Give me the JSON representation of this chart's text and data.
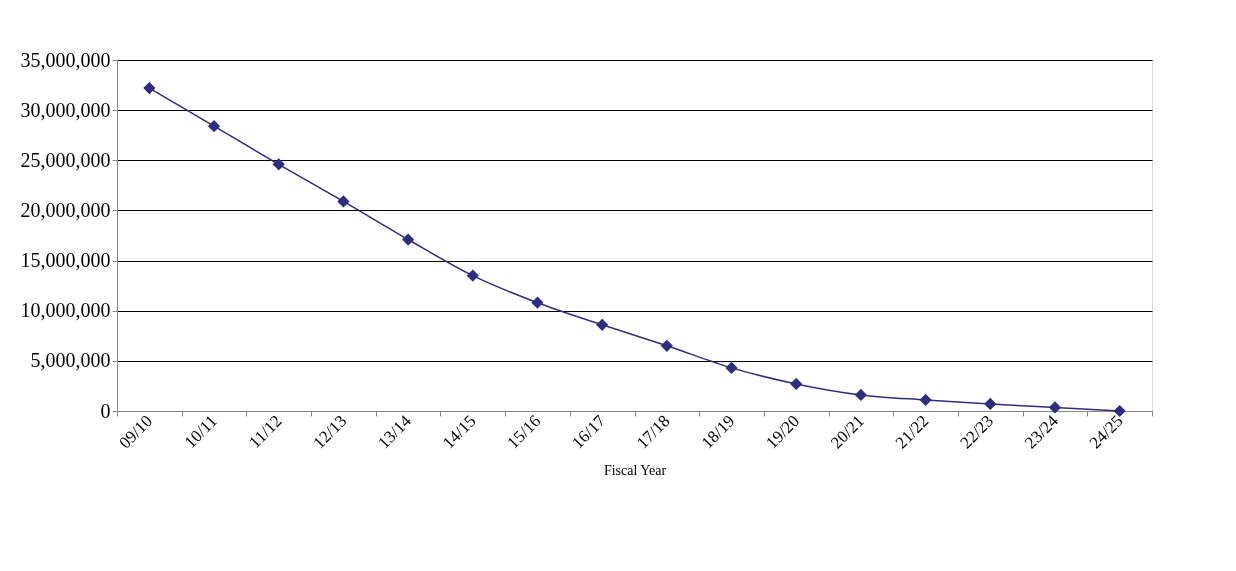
{
  "chart_data": {
    "type": "line",
    "xlabel": "Fiscal Year",
    "categories": [
      "09/10",
      "10/11",
      "11/12",
      "12/13",
      "13/14",
      "14/15",
      "15/16",
      "16/17",
      "17/18",
      "18/19",
      "19/20",
      "20/21",
      "21/22",
      "22/23",
      "23/24",
      "24/25"
    ],
    "series": [
      {
        "color": "#2e2e7e",
        "values": [
          32200000,
          28400000,
          24600000,
          20900000,
          17100000,
          13500000,
          10800000,
          8600000,
          6500000,
          4300000,
          2700000,
          1600000,
          1100000,
          700000,
          350000,
          0
        ]
      }
    ],
    "ylim": [
      0,
      35000000
    ],
    "yticks": [
      {
        "value": 0,
        "label": "0"
      },
      {
        "value": 5000000,
        "label": "5,000,000"
      },
      {
        "value": 10000000,
        "label": "10,000,000"
      },
      {
        "value": 15000000,
        "label": "15,000,000"
      },
      {
        "value": 20000000,
        "label": "20,000,000"
      },
      {
        "value": 25000000,
        "label": "25,000,000"
      },
      {
        "value": 30000000,
        "label": "30,000,000"
      },
      {
        "value": 35000000,
        "label": "35,000,000"
      }
    ],
    "grid": "y",
    "legend": false,
    "marker": "diamond",
    "line_style": "solid"
  }
}
